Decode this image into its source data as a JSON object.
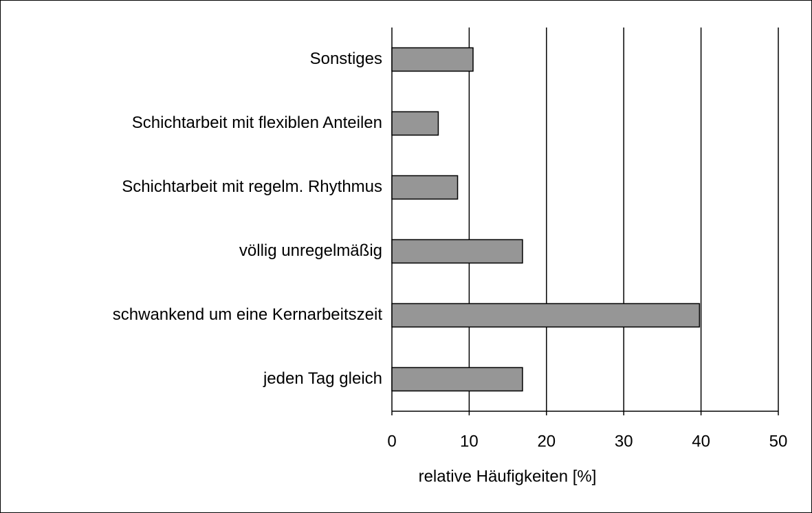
{
  "chart_data": {
    "type": "bar",
    "orientation": "horizontal",
    "x_label": "relative Häufigkeiten [%]",
    "categories": [
      "Sonstiges",
      "Schichtarbeit mit flexiblen Anteilen",
      "Schichtarbeit mit regelm. Rhythmus",
      "völlig unregelmäßig",
      "schwankend um eine Kernarbeitszeit",
      "jeden Tag gleich"
    ],
    "values": [
      10.5,
      6.0,
      8.5,
      16.9,
      39.8,
      16.9
    ],
    "color": "#969696",
    "xlim": [
      0,
      50
    ],
    "xticks": [
      0,
      10,
      20,
      30,
      40,
      50
    ],
    "grid": true
  }
}
